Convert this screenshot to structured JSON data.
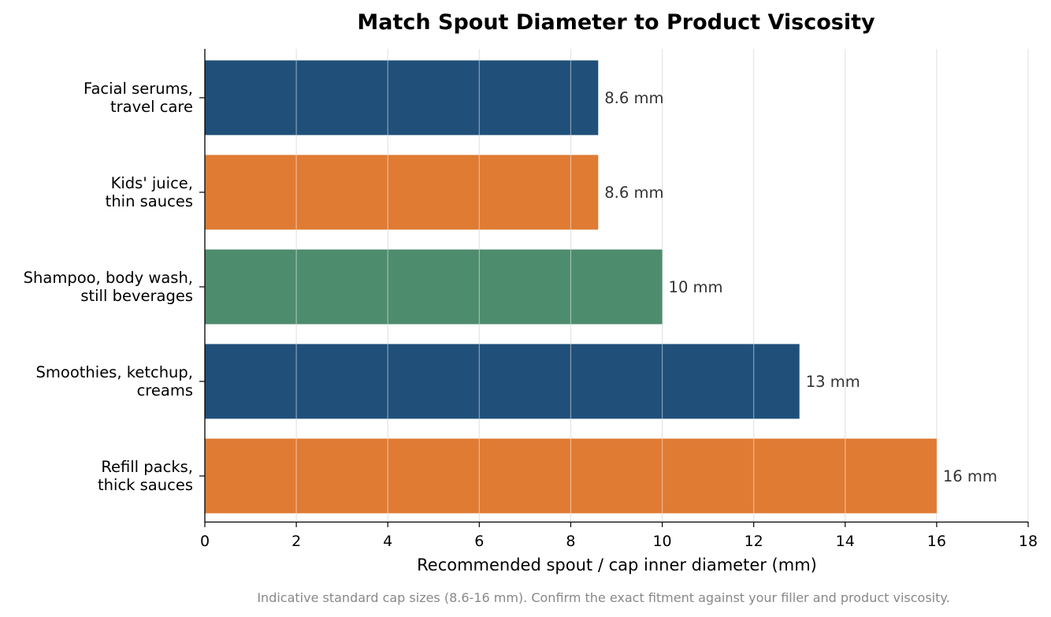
{
  "chart_data": {
    "type": "bar",
    "orientation": "horizontal",
    "title": "Match Spout Diameter to Product Viscosity",
    "xlabel": "Recommended spout / cap inner diameter (mm)",
    "ylabel": "",
    "xlim": [
      0,
      18
    ],
    "xticks": [
      0,
      2,
      4,
      6,
      8,
      10,
      12,
      14,
      16,
      18
    ],
    "grid": "vertical",
    "unit_suffix": " mm",
    "footnote": "Indicative standard cap sizes (8.6-16 mm). Confirm the exact fitment against your filler and product viscosity.",
    "bars": [
      {
        "label": [
          "Facial serums,",
          "travel care"
        ],
        "value": 8.6,
        "value_label": "8.6 mm",
        "color": "#20507a"
      },
      {
        "label": [
          "Kids' juice,",
          "thin sauces"
        ],
        "value": 8.6,
        "value_label": "8.6 mm",
        "color": "#e07b34"
      },
      {
        "label": [
          "Shampoo, body wash,",
          "still beverages"
        ],
        "value": 10,
        "value_label": "10 mm",
        "color": "#4e8c6e"
      },
      {
        "label": [
          "Smoothies, ketchup,",
          "creams"
        ],
        "value": 13,
        "value_label": "13 mm",
        "color": "#20507a"
      },
      {
        "label": [
          "Refill packs,",
          "thick sauces"
        ],
        "value": 16,
        "value_label": "16 mm",
        "color": "#e07b34"
      }
    ]
  }
}
